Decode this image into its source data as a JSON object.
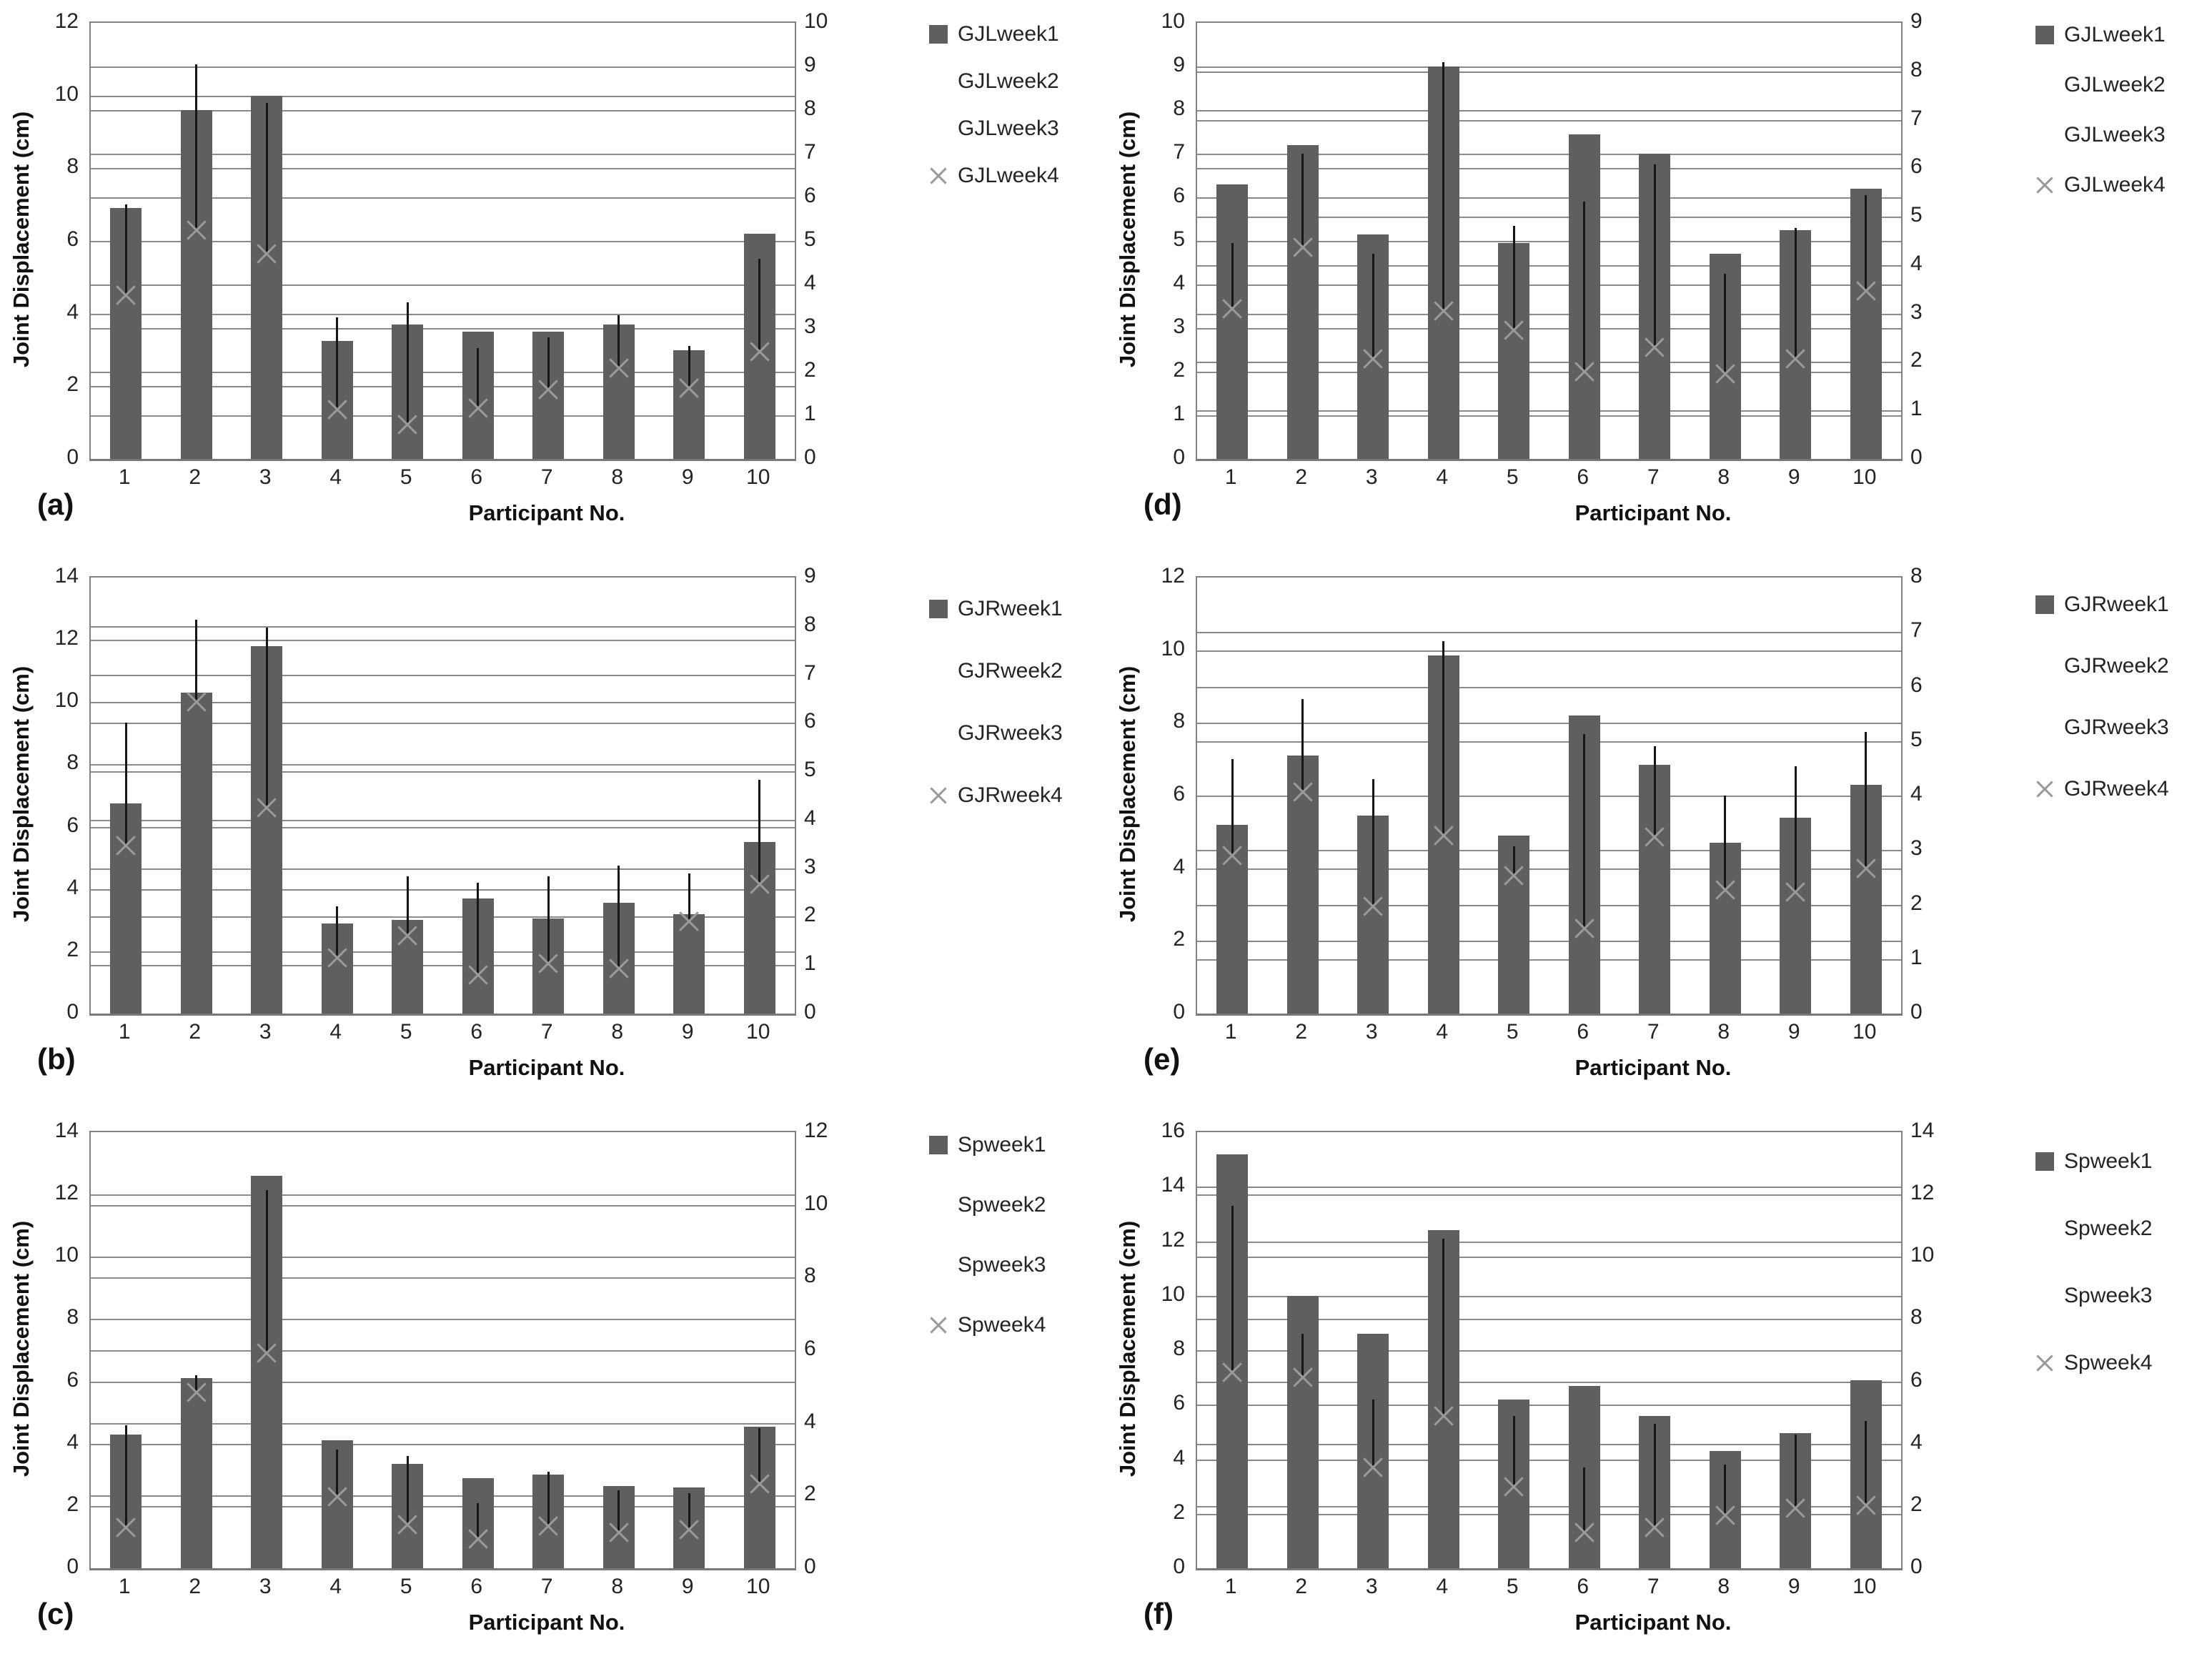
{
  "figure": {
    "background": "#ffffff",
    "description": "Six Excel-style bar charts (a-f) of joint displacement per participant, each with a dark gray week1 bar, a vertical high-low error line, and an X marker (week4) at the low end. Dual y-axes with overlapping gridlines."
  },
  "colors": {
    "bar": "#5f5f5f",
    "error_line": "#161616",
    "x_marker": "#9a9a9a",
    "gridline": "#8a8a8a",
    "plot_border": "#828282",
    "text": "#242424"
  },
  "chart_data": [
    {
      "type": "bar",
      "panel_label": "(a)",
      "ylabel": "Joint Displacement (cm)",
      "xlabel": "Participant No.",
      "categories": [
        "1",
        "2",
        "3",
        "4",
        "5",
        "6",
        "7",
        "8",
        "9",
        "10"
      ],
      "left_axis": {
        "min": 0,
        "max": 12,
        "step": 2
      },
      "right_axis": {
        "min": 0,
        "max": 10,
        "step": 1
      },
      "left_ticks": [
        0,
        2,
        4,
        6,
        8,
        10,
        12
      ],
      "right_ticks": [
        0,
        1,
        2,
        3,
        4,
        5,
        6,
        7,
        8,
        9,
        10
      ],
      "legend": [
        {
          "label": "GJLweek1",
          "marker": "square"
        },
        {
          "label": "GJLweek2",
          "marker": "none"
        },
        {
          "label": "GJLweek3",
          "marker": "none"
        },
        {
          "label": "GJLweek4",
          "marker": "x"
        }
      ],
      "series": [
        {
          "name": "GJLweek1",
          "type": "bar",
          "values": [
            6.9,
            9.6,
            10.0,
            3.25,
            3.7,
            3.5,
            3.5,
            3.7,
            3.0,
            6.2
          ]
        },
        {
          "name": "error_line_high",
          "type": "line_endpoint",
          "values": [
            7.0,
            10.85,
            9.8,
            3.9,
            4.3,
            3.05,
            3.35,
            3.95,
            3.1,
            5.5
          ]
        },
        {
          "name": "GJLweek4",
          "type": "x_marker_at_line_low",
          "values": [
            4.5,
            6.3,
            5.65,
            1.35,
            0.95,
            1.4,
            1.9,
            2.5,
            1.95,
            2.95
          ]
        }
      ]
    },
    {
      "type": "bar",
      "panel_label": "(b)",
      "ylabel": "Joint Displacement (cm)",
      "xlabel": "Participant No.",
      "categories": [
        "1",
        "2",
        "3",
        "4",
        "5",
        "6",
        "7",
        "8",
        "9",
        "10"
      ],
      "left_axis": {
        "min": 0,
        "max": 14,
        "step": 2
      },
      "right_axis": {
        "min": 0,
        "max": 9,
        "step": 1
      },
      "left_ticks": [
        0,
        2,
        4,
        6,
        8,
        10,
        12,
        14
      ],
      "right_ticks": [
        0,
        1,
        2,
        3,
        4,
        5,
        6,
        7,
        8,
        9
      ],
      "legend": [
        {
          "label": "GJRweek1",
          "marker": "square"
        },
        {
          "label": "GJRweek2",
          "marker": "none"
        },
        {
          "label": "GJRweek3",
          "marker": "none"
        },
        {
          "label": "GJRweek4",
          "marker": "x"
        }
      ],
      "series": [
        {
          "name": "GJRweek1",
          "type": "bar",
          "values": [
            6.75,
            10.3,
            11.8,
            2.9,
            3.0,
            3.7,
            3.05,
            3.55,
            3.2,
            5.5
          ]
        },
        {
          "name": "error_line_high",
          "type": "line_endpoint",
          "values": [
            9.35,
            12.65,
            12.4,
            3.45,
            4.4,
            4.2,
            4.4,
            4.75,
            4.5,
            7.5
          ]
        },
        {
          "name": "GJRweek4",
          "type": "x_marker_at_line_low",
          "values": [
            5.4,
            10.0,
            6.6,
            1.8,
            2.5,
            1.25,
            1.6,
            1.45,
            2.95,
            4.15
          ]
        }
      ]
    },
    {
      "type": "bar",
      "panel_label": "(c)",
      "ylabel": "Joint Displacement (cm)",
      "xlabel": "Participant No.",
      "categories": [
        "1",
        "2",
        "3",
        "4",
        "5",
        "6",
        "7",
        "8",
        "9",
        "10"
      ],
      "left_axis": {
        "min": 0,
        "max": 14,
        "step": 2
      },
      "right_axis": {
        "min": 0,
        "max": 12,
        "step": 2
      },
      "left_ticks": [
        0,
        2,
        4,
        6,
        8,
        10,
        12,
        14
      ],
      "right_ticks": [
        0,
        2,
        4,
        6,
        8,
        10,
        12
      ],
      "legend": [
        {
          "label": "Spweek1",
          "marker": "square"
        },
        {
          "label": "Spweek2",
          "marker": "none"
        },
        {
          "label": "Spweek3",
          "marker": "none"
        },
        {
          "label": "Spweek4",
          "marker": "x"
        }
      ],
      "series": [
        {
          "name": "Spweek1",
          "type": "bar",
          "values": [
            4.3,
            6.1,
            12.6,
            4.1,
            3.35,
            2.9,
            3.0,
            2.65,
            2.6,
            4.55
          ]
        },
        {
          "name": "error_line_high",
          "type": "line_endpoint",
          "values": [
            4.6,
            6.2,
            12.15,
            3.8,
            3.6,
            2.1,
            3.1,
            2.5,
            2.4,
            4.5
          ]
        },
        {
          "name": "Spweek4",
          "type": "x_marker_at_line_low",
          "values": [
            1.3,
            5.65,
            6.9,
            2.3,
            1.4,
            0.95,
            1.35,
            1.15,
            1.25,
            2.7
          ]
        }
      ]
    },
    {
      "type": "bar",
      "panel_label": "(d)",
      "ylabel": "Joint Displacement (cm)",
      "xlabel": "Participant No.",
      "categories": [
        "1",
        "2",
        "3",
        "4",
        "5",
        "6",
        "7",
        "8",
        "9",
        "10"
      ],
      "left_axis": {
        "min": 0,
        "max": 10,
        "step": 1
      },
      "right_axis": {
        "min": 0,
        "max": 9,
        "step": 1
      },
      "left_ticks": [
        0,
        1,
        2,
        3,
        4,
        5,
        6,
        7,
        8,
        9,
        10
      ],
      "right_ticks": [
        0,
        1,
        2,
        3,
        4,
        5,
        6,
        7,
        8,
        9
      ],
      "legend": [
        {
          "label": "GJLweek1",
          "marker": "square"
        },
        {
          "label": "GJLweek2",
          "marker": "none"
        },
        {
          "label": "GJLweek3",
          "marker": "none"
        },
        {
          "label": "GJLweek4",
          "marker": "x"
        }
      ],
      "series": [
        {
          "name": "GJLweek1",
          "type": "bar",
          "values": [
            6.3,
            7.2,
            5.15,
            9.0,
            4.95,
            7.45,
            7.0,
            4.7,
            5.25,
            6.2
          ]
        },
        {
          "name": "error_line_high",
          "type": "line_endpoint",
          "values": [
            4.95,
            7.0,
            4.7,
            9.1,
            5.35,
            5.9,
            6.75,
            4.25,
            5.3,
            6.05
          ]
        },
        {
          "name": "GJLweek4",
          "type": "x_marker_at_line_low",
          "values": [
            3.45,
            4.85,
            2.3,
            3.4,
            2.95,
            2.0,
            2.55,
            1.95,
            2.3,
            3.85
          ]
        }
      ]
    },
    {
      "type": "bar",
      "panel_label": "(e)",
      "ylabel": "Joint Displacement (cm)",
      "xlabel": "Participant No.",
      "categories": [
        "1",
        "2",
        "3",
        "4",
        "5",
        "6",
        "7",
        "8",
        "9",
        "10"
      ],
      "left_axis": {
        "min": 0,
        "max": 12,
        "step": 2
      },
      "right_axis": {
        "min": 0,
        "max": 8,
        "step": 1
      },
      "left_ticks": [
        0,
        2,
        4,
        6,
        8,
        10,
        12
      ],
      "right_ticks": [
        0,
        1,
        2,
        3,
        4,
        5,
        6,
        7,
        8
      ],
      "legend": [
        {
          "label": "GJRweek1",
          "marker": "square"
        },
        {
          "label": "GJRweek2",
          "marker": "none"
        },
        {
          "label": "GJRweek3",
          "marker": "none"
        },
        {
          "label": "GJRweek4",
          "marker": "x"
        }
      ],
      "series": [
        {
          "name": "GJRweek1",
          "type": "bar",
          "values": [
            5.2,
            7.1,
            5.45,
            9.85,
            4.9,
            8.2,
            6.85,
            4.7,
            5.4,
            6.3
          ]
        },
        {
          "name": "error_line_high",
          "type": "line_endpoint",
          "values": [
            7.0,
            8.65,
            6.45,
            10.25,
            4.6,
            7.7,
            7.35,
            6.0,
            6.8,
            7.75
          ]
        },
        {
          "name": "GJRweek4",
          "type": "x_marker_at_line_low",
          "values": [
            4.35,
            6.1,
            2.95,
            4.9,
            3.8,
            2.35,
            4.85,
            3.4,
            3.35,
            4.0
          ]
        }
      ]
    },
    {
      "type": "bar",
      "panel_label": "(f)",
      "ylabel": "Joint Displacement (cm)",
      "xlabel": "Participant No.",
      "categories": [
        "1",
        "2",
        "3",
        "4",
        "5",
        "6",
        "7",
        "8",
        "9",
        "10"
      ],
      "left_axis": {
        "min": 0,
        "max": 16,
        "step": 2
      },
      "right_axis": {
        "min": 0,
        "max": 14,
        "step": 2
      },
      "left_ticks": [
        0,
        2,
        4,
        6,
        8,
        10,
        12,
        14,
        16
      ],
      "right_ticks": [
        0,
        2,
        4,
        6,
        8,
        10,
        12,
        14
      ],
      "legend": [
        {
          "label": "Spweek1",
          "marker": "square"
        },
        {
          "label": "Spweek2",
          "marker": "none"
        },
        {
          "label": "Spweek3",
          "marker": "none"
        },
        {
          "label": "Spweek4",
          "marker": "x"
        }
      ],
      "series": [
        {
          "name": "Spweek1",
          "type": "bar",
          "values": [
            15.2,
            10.0,
            8.6,
            12.4,
            6.2,
            6.7,
            5.6,
            4.3,
            4.95,
            6.9
          ]
        },
        {
          "name": "error_line_high",
          "type": "line_endpoint",
          "values": [
            13.3,
            8.6,
            6.2,
            12.1,
            5.6,
            3.7,
            5.3,
            3.8,
            4.9,
            5.4
          ]
        },
        {
          "name": "Spweek4",
          "type": "x_marker_at_line_low",
          "values": [
            7.2,
            7.0,
            3.7,
            5.6,
            3.0,
            1.3,
            1.5,
            1.95,
            2.2,
            2.3
          ]
        }
      ]
    }
  ]
}
